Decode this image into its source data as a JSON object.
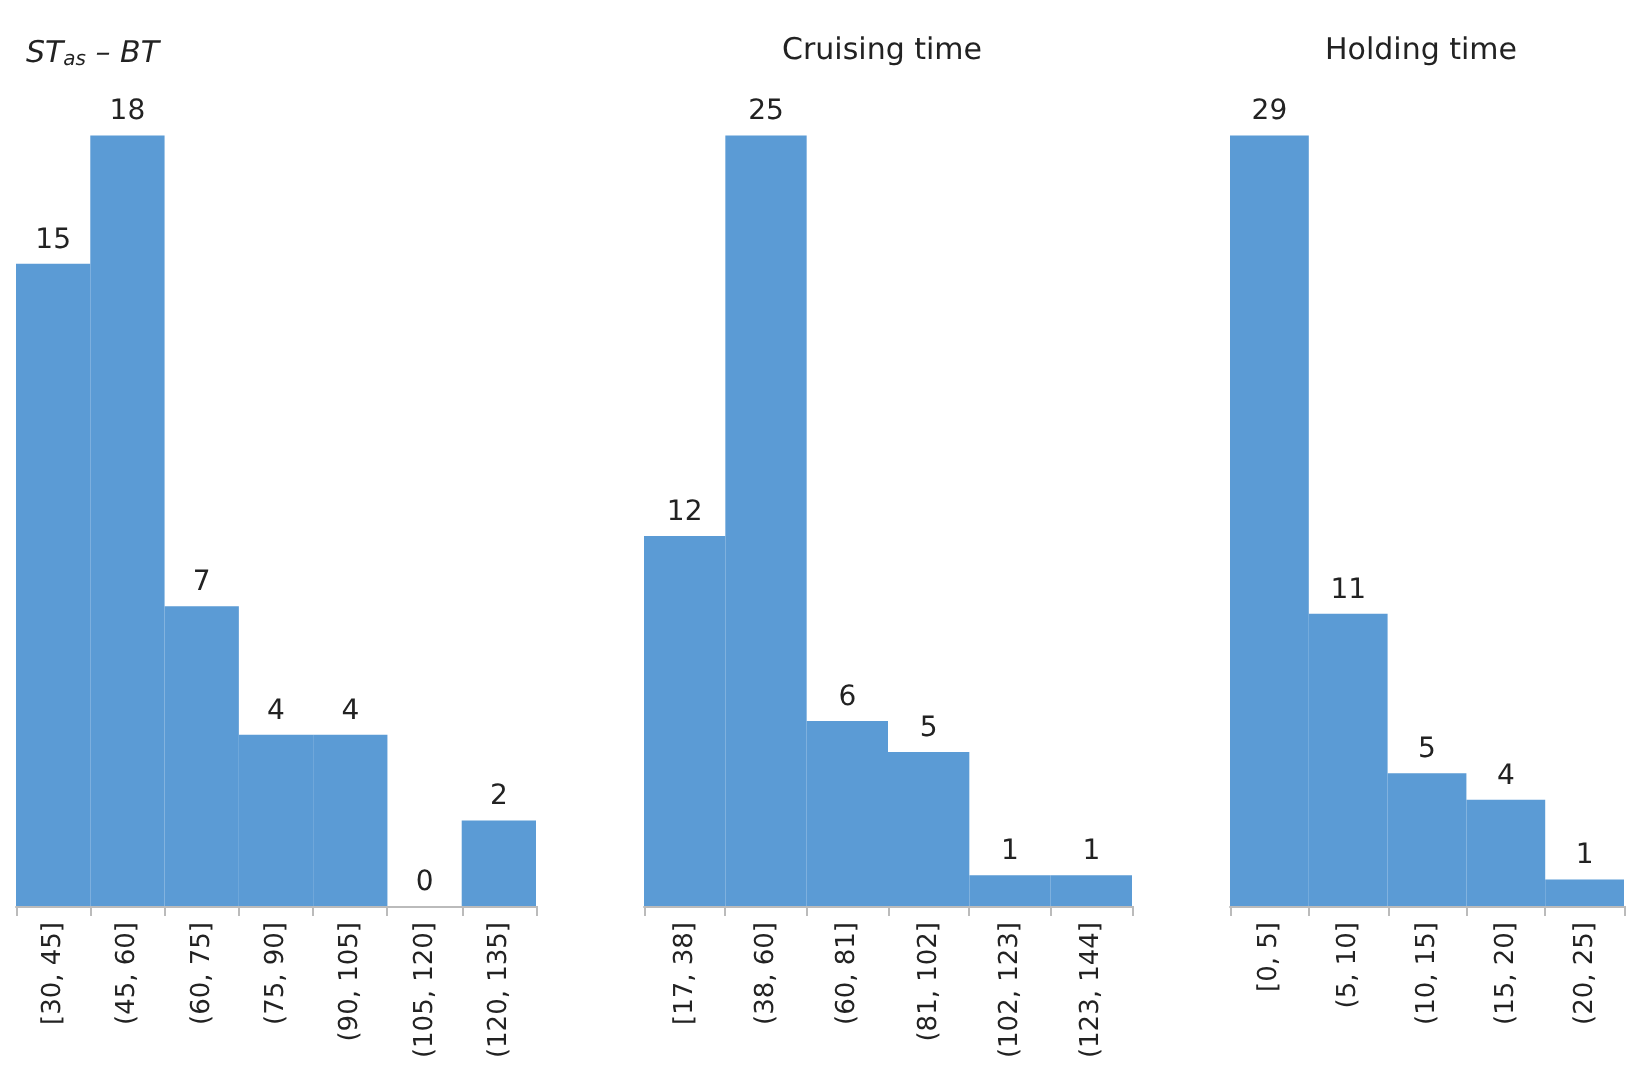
{
  "chart_data": [
    {
      "type": "bar",
      "title": "ST$_{as}$ – BT",
      "categories": [
        "[30, 45]",
        "(45, 60]",
        "(60, 75]",
        "(75, 90]",
        "(90, 105]",
        "(105, 120]",
        "(120, 135]"
      ],
      "values": [
        15,
        18,
        7,
        4,
        4,
        0,
        2
      ],
      "color": "#5b9bd5",
      "data_labels": true
    },
    {
      "type": "bar",
      "title": "Cruising time",
      "categories": [
        "[17, 38]",
        "(38, 60]",
        "(60, 81]",
        "(81, 102]",
        "(102, 123]",
        "(123, 144]"
      ],
      "values": [
        12,
        25,
        6,
        5,
        1,
        1
      ],
      "color": "#5b9bd5",
      "data_labels": true
    },
    {
      "type": "bar",
      "title": "Holding time",
      "categories": [
        "[0, 5]",
        "(5, 10]",
        "(10, 15]",
        "(15, 20]",
        "(20, 25]"
      ],
      "values": [
        29,
        11,
        5,
        4,
        1
      ],
      "color": "#5b9bd5",
      "data_labels": true
    }
  ]
}
